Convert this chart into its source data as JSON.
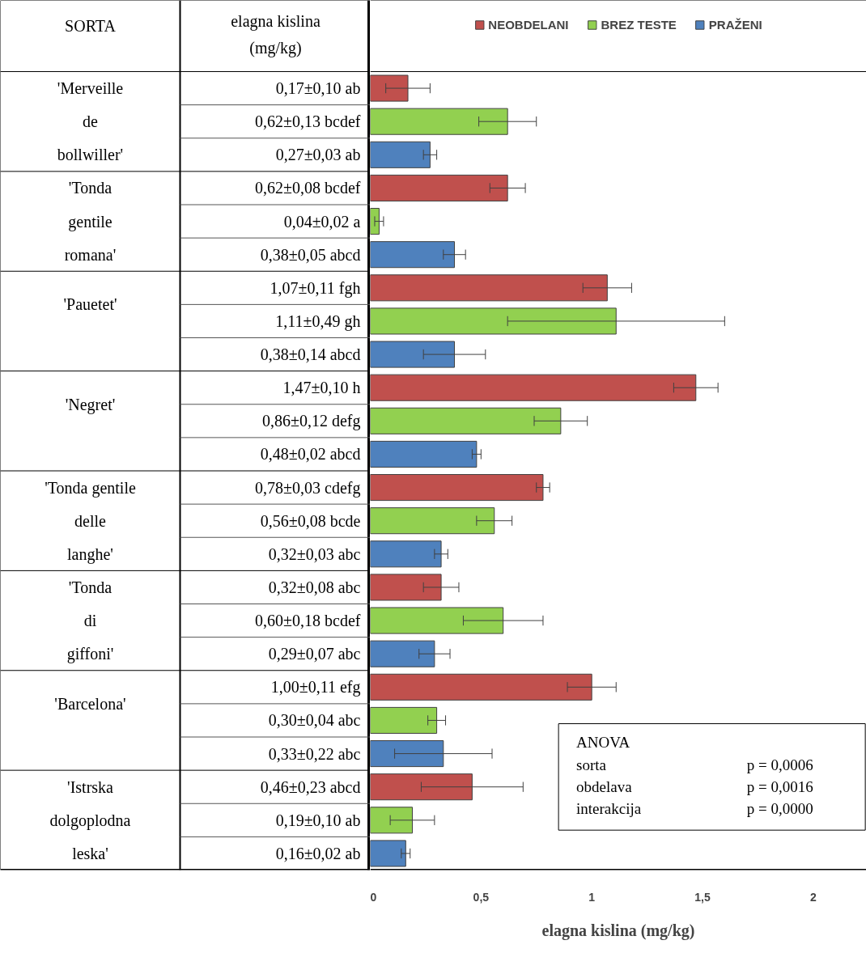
{
  "chart_data": {
    "type": "bar",
    "orientation": "horizontal",
    "categories": [
      "0,17±0,10 ab",
      "0,62±0,13 bcdef",
      "0,27±0,03 ab",
      "0,62±0,08 bcdef",
      "0,04±0,02 a",
      "0,38±0,05 abcd",
      "1,07±0,11 fgh",
      "1,11±0,49 gh",
      "0,38±0,14 abcd",
      "1,47±0,10 h",
      "0,86±0,12 defg",
      "0,48±0,02 abcd",
      "0,78±0,03 cdefg",
      "0,56±0,08 bcde",
      "0,32±0,03 abc",
      "0,32±0,08 abc",
      "0,60±0,18 bcdef",
      "0,29±0,07 abc",
      "1,00±0,11 efg",
      "0,30±0,04 abc",
      "0,33±0,22 abc",
      "0,46±0,23 abcd",
      "0,19±0,10 ab",
      "0,16±0,02 ab"
    ],
    "series": [
      {
        "name": "NEOBDELANI",
        "color": "#c0504d",
        "values": [
          0.17,
          null,
          null,
          0.62,
          null,
          null,
          1.07,
          null,
          null,
          1.47,
          null,
          null,
          0.78,
          null,
          null,
          0.32,
          null,
          null,
          1.0,
          null,
          null,
          0.46,
          null,
          null
        ],
        "errors": [
          0.1,
          null,
          null,
          0.08,
          null,
          null,
          0.11,
          null,
          null,
          0.1,
          null,
          null,
          0.03,
          null,
          null,
          0.08,
          null,
          null,
          0.11,
          null,
          null,
          0.23,
          null,
          null
        ]
      },
      {
        "name": "BREZ TESTE",
        "color": "#92d050",
        "values": [
          null,
          0.62,
          null,
          null,
          0.04,
          null,
          null,
          1.11,
          null,
          null,
          0.86,
          null,
          null,
          0.56,
          null,
          null,
          0.6,
          null,
          null,
          0.3,
          null,
          null,
          0.19,
          null
        ],
        "errors": [
          null,
          0.13,
          null,
          null,
          0.02,
          null,
          null,
          0.49,
          null,
          null,
          0.12,
          null,
          null,
          0.08,
          null,
          null,
          0.18,
          null,
          null,
          0.04,
          null,
          null,
          0.1,
          null
        ]
      },
      {
        "name": "PRAŽENI",
        "color": "#4f81bd",
        "values": [
          null,
          null,
          0.27,
          null,
          null,
          0.38,
          null,
          null,
          0.38,
          null,
          null,
          0.48,
          null,
          null,
          0.32,
          null,
          null,
          0.29,
          null,
          null,
          0.33,
          null,
          null,
          0.16
        ],
        "errors": [
          null,
          null,
          0.03,
          null,
          null,
          0.05,
          null,
          null,
          0.14,
          null,
          null,
          0.02,
          null,
          null,
          0.03,
          null,
          null,
          0.07,
          null,
          null,
          0.22,
          null,
          null,
          0.02
        ]
      }
    ],
    "xlabel": "elagna kislina (mg/kg)",
    "xlim": [
      0,
      2.24
    ],
    "xticks": [
      0,
      {
        "value": 0.5,
        "label": "0,5"
      },
      1,
      {
        "value": 1.5,
        "label": "1,5"
      },
      2
    ],
    "grid": false,
    "legend": "top",
    "annotations": [
      "SORTA",
      "elagna kislina\n(mg/kg)",
      "'Merveille\nde\nbollwiller'",
      "'Tonda\ngentile\nromana'",
      "'Pauetet'",
      "'Negret'",
      "'Tonda gentile\ndelle\nlanghe'",
      "'Tonda\ndi\ngiffoni'",
      "'Barcelona'",
      "'Istrska\ndolgoplodna\nleska'",
      "ANOVA",
      "sorta",
      "p = 0,0006",
      "obdelava",
      "p = 0,0016",
      "interakcija",
      "p = 0,0000"
    ]
  }
}
